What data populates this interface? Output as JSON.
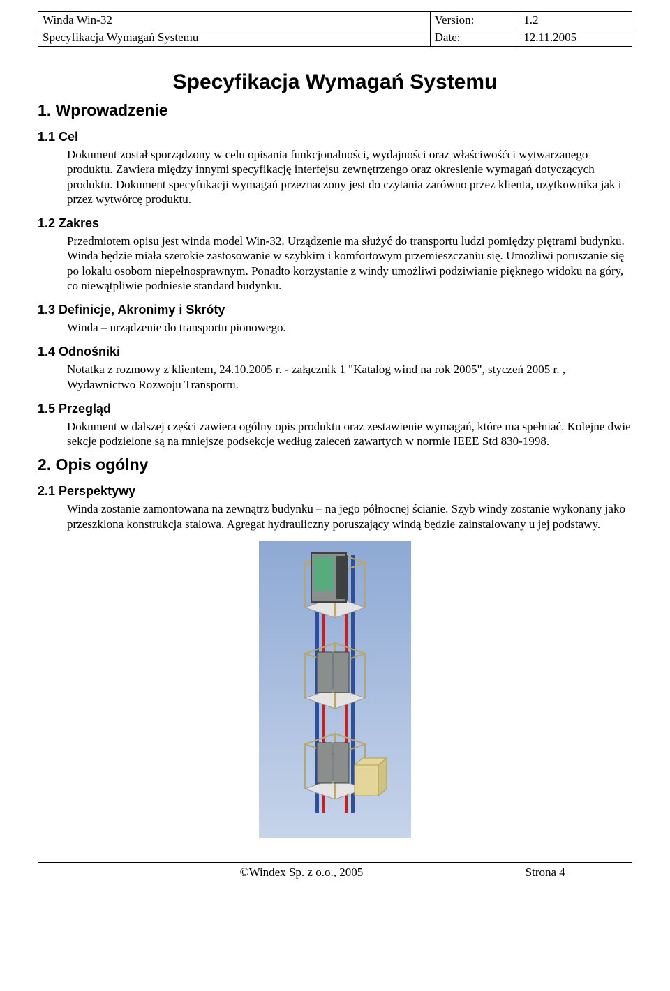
{
  "header": {
    "row1_left": "Winda Win-32",
    "row1_mid": "Version:",
    "row1_right": "1.2",
    "row2_left": "Specyfikacja Wymagań Systemu",
    "row2_mid": "Date:",
    "row2_right": "12.11.2005"
  },
  "title": "Specyfikacja Wymagań Systemu",
  "sections": {
    "s1": "1. Wprowadzenie",
    "s1_1": "1.1 Cel",
    "s1_1_body": "Dokument został sporządzony w celu opisania funkcjonalności, wydajności oraz właściwośćci wytwarzanego produktu. Zawiera między innymi specyfikację interfejsu zewnętrzengo oraz okreslenie wymagań dotyczących produktu. Dokument specyfukacji wymagań przeznaczony jest do czytania zarówno przez klienta, uzytkownika jak i przez wytwórcę produktu.",
    "s1_2": "1.2 Zakres",
    "s1_2_body": "Przedmiotem opisu jest winda model Win-32. Urządzenie ma służyć do transportu ludzi pomiędzy piętrami budynku. Winda będzie miała szerokie zastosowanie w szybkim i komfortowym przemieszczaniu się. Umożliwi poruszanie się po lokalu osobom niepełnosprawnym. Ponadto korzystanie z windy umożliwi podziwianie pięknego widoku na góry, co niewątpliwie podniesie standard budynku.",
    "s1_3": "1.3 Definicje, Akronimy i Skróty",
    "s1_3_body": "Winda – urządzenie do transportu pionowego.",
    "s1_4": "1.4 Odnośniki",
    "s1_4_body": "Notatka z rozmowy z klientem, 24.10.2005 r. - załącznik 1\n\"Katalog wind na  rok 2005\", styczeń 2005 r. , Wydawnictwo Rozwoju Transportu.",
    "s1_5": "1.5 Przegląd",
    "s1_5_body": "Dokument w dalszej części zawiera ogólny opis produktu oraz zestawienie wymagań, które ma spełniać. Kolejne dwie sekcje podzielone są na mniejsze podsekcje według zaleceń zawartych w normie IEEE Std 830-1998.",
    "s2": "2. Opis ogólny",
    "s2_1": "2.1 Perspektywy",
    "s2_1_body": "Winda zostanie zamontowana na zewnątrz budynku – na jego północnej ścianie. Szyb windy zostanie wykonany jako przeszklona konstrukcja stalowa. Agregat hydrauliczny poruszający windą będzie zainstalowany u jej podstawy."
  },
  "figure": {
    "bg_top": "#8ea9d4",
    "bg_bottom": "#c6d4ea",
    "frame_color": "#b8a66a",
    "floor_color": "#e4e4e4",
    "rail_red": "#c6201f",
    "rail_blue": "#2e4fa0",
    "cabin_body": "#8a8f8e",
    "cabin_dark": "#3e4140",
    "glass_color": "#4fb07a",
    "unit_color": "#e4d69a"
  },
  "footer": {
    "copyright": "©Windex Sp. z o.o., 2005",
    "page": "Strona 4"
  }
}
